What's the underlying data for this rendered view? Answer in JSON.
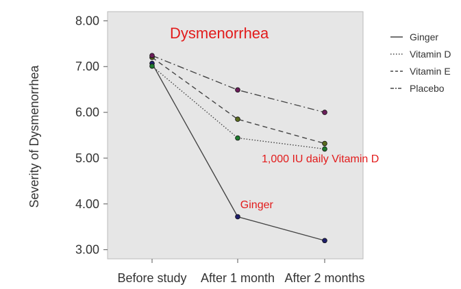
{
  "chart_data": {
    "type": "line",
    "title": "Dysmenorrhea",
    "xlabel": "",
    "ylabel": "Severity of Dysmenorrhea",
    "categories": [
      "Before study",
      "After 1 month",
      "After 2 months"
    ],
    "y_ticks": [
      "3.00",
      "4.00",
      "5.00",
      "6.00",
      "7.00",
      "8.00"
    ],
    "ylim": [
      2.8,
      8.2
    ],
    "series": [
      {
        "name": "Ginger",
        "dash": "solid",
        "marker_color": "#1f1f6b",
        "values": [
          7.07,
          3.72,
          3.2
        ]
      },
      {
        "name": "Vitamin D",
        "dash": "dotted",
        "marker_color": "#1e7a2e",
        "values": [
          7.01,
          5.44,
          5.2
        ]
      },
      {
        "name": "Vitamin E",
        "dash": "dashed",
        "marker_color": "#5a6b1e",
        "values": [
          7.2,
          5.85,
          5.32
        ]
      },
      {
        "name": "Placebo",
        "dash": "dashdot",
        "marker_color": "#6b1e5a",
        "values": [
          7.24,
          6.49,
          6.0
        ]
      }
    ],
    "annotations": [
      {
        "text": "1,000 IU daily Vitamin D",
        "x": 1.95,
        "y": 5.0
      },
      {
        "text": "Ginger",
        "x": 1.03,
        "y": 4.0
      }
    ],
    "legend_position": "right",
    "grid": false,
    "colors": {
      "line": "#444444",
      "axis": "#555555",
      "annotation": "#e21b1b",
      "frame": "#bbbbbb"
    }
  }
}
